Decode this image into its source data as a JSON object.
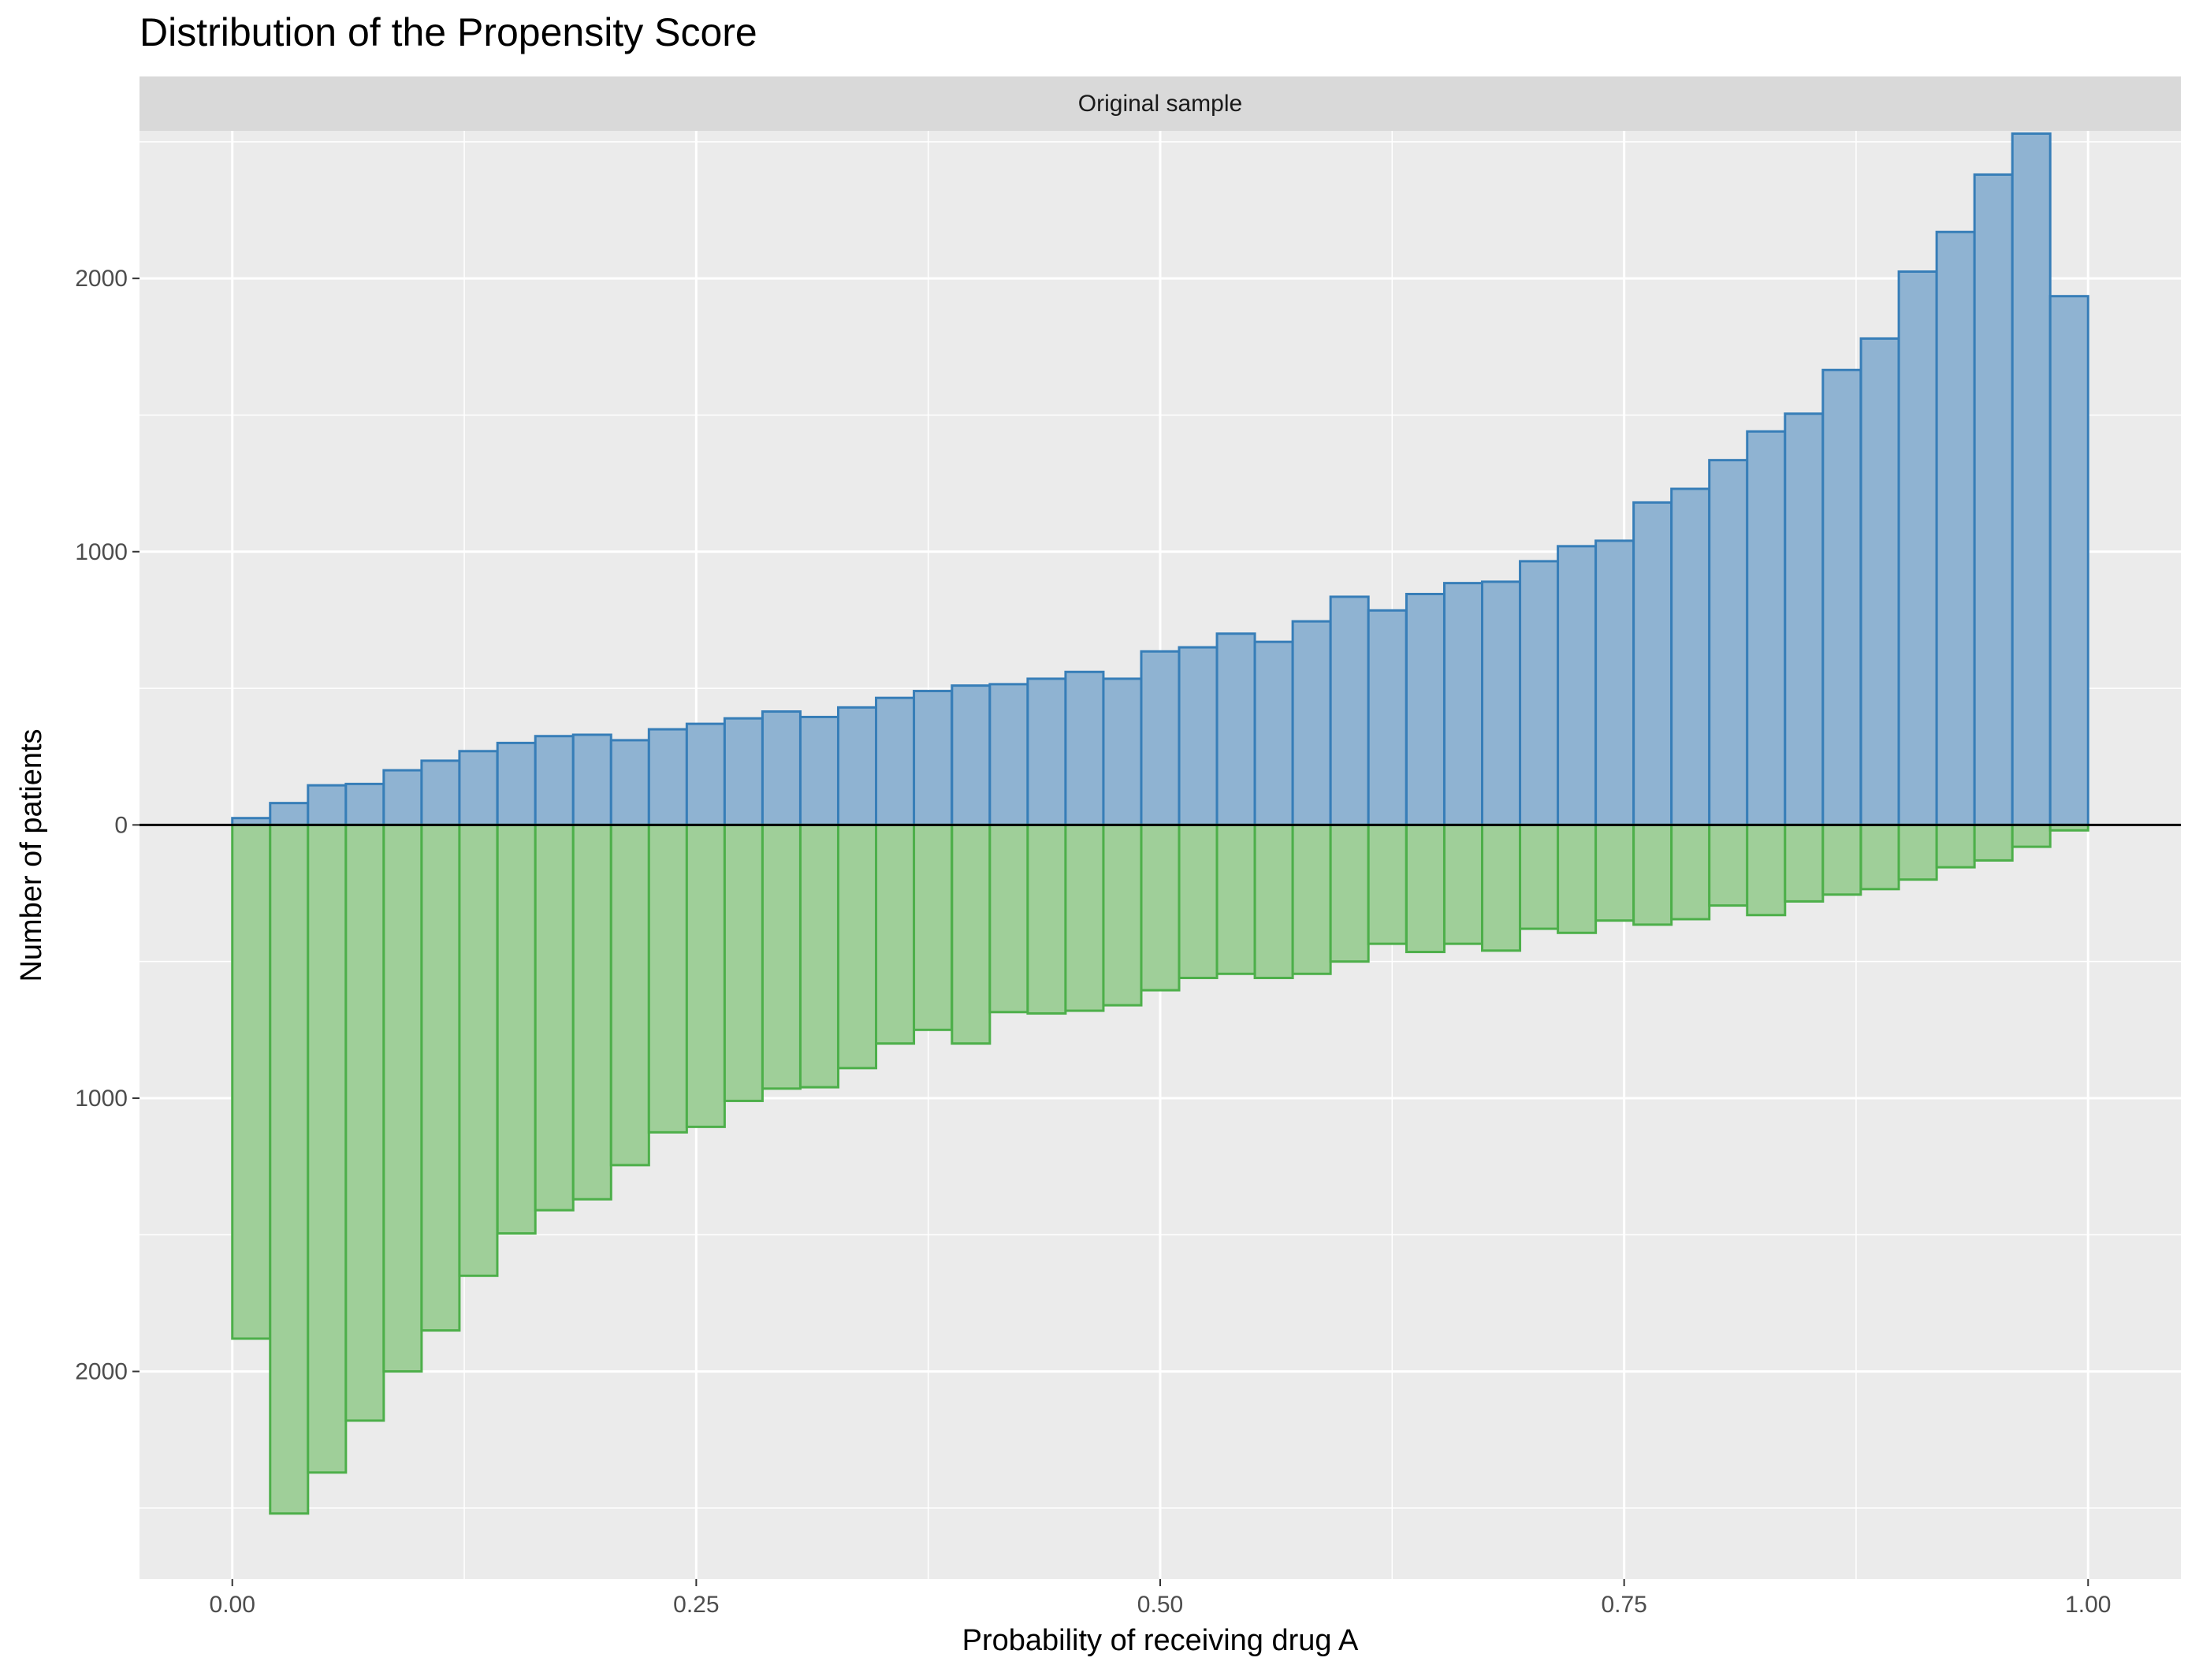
{
  "chart_data": {
    "type": "bar",
    "title": "Distribution of the Propensity Score",
    "facet_label": "Original sample",
    "xlabel": "Probability of receiving drug A",
    "ylabel": "Number of patients",
    "xlim": [
      -0.05,
      1.05
    ],
    "ylim": [
      -2760,
      2540
    ],
    "x_ticks": [
      {
        "value": 0.0,
        "label": "0.00"
      },
      {
        "value": 0.25,
        "label": "0.25"
      },
      {
        "value": 0.5,
        "label": "0.50"
      },
      {
        "value": 0.75,
        "label": "0.75"
      },
      {
        "value": 1.0,
        "label": "1.00"
      }
    ],
    "y_ticks": [
      {
        "value": 2000,
        "label": "2000"
      },
      {
        "value": 1000,
        "label": "1000"
      },
      {
        "value": 0,
        "label": "0"
      },
      {
        "value": -1000,
        "label": "1000"
      },
      {
        "value": -2000,
        "label": "2000"
      }
    ],
    "bin_width": 0.0204,
    "bin_starts": [
      0.0,
      0.0204,
      0.0408,
      0.0612,
      0.0816,
      0.102,
      0.1224,
      0.1429,
      0.1633,
      0.1837,
      0.2041,
      0.2245,
      0.2449,
      0.2653,
      0.2857,
      0.3061,
      0.3265,
      0.3469,
      0.3673,
      0.3878,
      0.4082,
      0.4286,
      0.449,
      0.4694,
      0.4898,
      0.5102,
      0.5306,
      0.551,
      0.5714,
      0.5918,
      0.6122,
      0.6327,
      0.6531,
      0.6735,
      0.6939,
      0.7143,
      0.7347,
      0.7551,
      0.7755,
      0.7959,
      0.8163,
      0.8367,
      0.8571,
      0.8776,
      0.898,
      0.9184,
      0.9388,
      0.9592,
      0.9796
    ],
    "series": [
      {
        "color": "#377eb8",
        "fill": "#8fb3d2",
        "direction": "up",
        "values": [
          25,
          80,
          145,
          150,
          200,
          235,
          270,
          300,
          325,
          330,
          310,
          350,
          370,
          390,
          415,
          395,
          430,
          465,
          490,
          510,
          515,
          535,
          560,
          535,
          635,
          650,
          700,
          670,
          745,
          835,
          785,
          845,
          885,
          890,
          965,
          1020,
          1040,
          1180,
          1230,
          1335,
          1440,
          1505,
          1665,
          1780,
          2025,
          2170,
          2380,
          2530,
          1935
        ]
      },
      {
        "color": "#4daf4a",
        "fill": "#9fcf99",
        "direction": "down",
        "values": [
          1880,
          2520,
          2370,
          2180,
          2000,
          1850,
          1650,
          1495,
          1410,
          1370,
          1245,
          1125,
          1105,
          1010,
          965,
          960,
          890,
          800,
          750,
          800,
          685,
          690,
          680,
          660,
          605,
          560,
          545,
          560,
          545,
          500,
          435,
          465,
          435,
          460,
          380,
          395,
          350,
          365,
          345,
          295,
          330,
          280,
          255,
          235,
          200,
          155,
          130,
          80,
          20
        ]
      }
    ],
    "grid": true
  }
}
